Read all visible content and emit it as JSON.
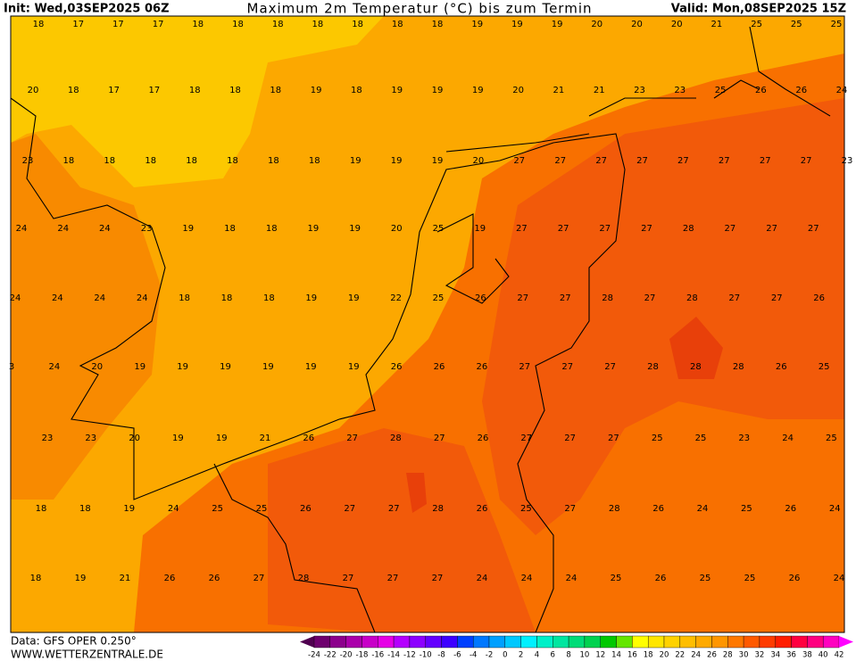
{
  "header": {
    "init": "Init: Wed,03SEP2025 06Z",
    "title": "Maximum 2m Temperatur (°C) bis zum Termin",
    "valid": "Valid: Mon,08SEP2025 15Z"
  },
  "footer": {
    "data": "Data: GFS OPER 0.250°",
    "site": "WWW.WETTERZENTRALE.DE"
  },
  "map": {
    "rows": [
      [
        18,
        17,
        17,
        17,
        18,
        18,
        18,
        18,
        18,
        18,
        18,
        19,
        19,
        19,
        20,
        20,
        20,
        21,
        25,
        25,
        25
      ],
      [
        20,
        18,
        17,
        17,
        18,
        18,
        18,
        19,
        18,
        19,
        19,
        19,
        20,
        21,
        21,
        23,
        23,
        25,
        26,
        26,
        24
      ],
      [
        23,
        18,
        18,
        18,
        18,
        18,
        18,
        18,
        19,
        19,
        19,
        20,
        27,
        27,
        27,
        27,
        27,
        27,
        27,
        27,
        23
      ],
      [
        24,
        24,
        24,
        23,
        19,
        18,
        18,
        19,
        19,
        20,
        25,
        19,
        27,
        27,
        27,
        27,
        28,
        27,
        27,
        27
      ],
      [
        24,
        24,
        24,
        24,
        18,
        18,
        18,
        19,
        19,
        22,
        25,
        26,
        27,
        27,
        28,
        27,
        28,
        27,
        27,
        26
      ],
      [
        3,
        24,
        20,
        19,
        19,
        19,
        19,
        19,
        19,
        26,
        26,
        26,
        27,
        27,
        27,
        28,
        28,
        28,
        26,
        25
      ],
      [
        23,
        23,
        20,
        19,
        19,
        21,
        26,
        27,
        28,
        27,
        26,
        27,
        27,
        27,
        25,
        25,
        23,
        24,
        25
      ],
      [
        18,
        18,
        19,
        24,
        25,
        25,
        26,
        27,
        27,
        28,
        26,
        25,
        27,
        28,
        26,
        24,
        25,
        26,
        24
      ],
      [
        18,
        19,
        21,
        26,
        26,
        27,
        28,
        27,
        27,
        27,
        24,
        24,
        24,
        25,
        26,
        25,
        25,
        26,
        24
      ]
    ]
  },
  "colorbar": {
    "ticks": [
      -24,
      -22,
      -20,
      -18,
      -16,
      -14,
      -12,
      -10,
      -8,
      -6,
      -4,
      -2,
      0,
      2,
      4,
      6,
      8,
      10,
      12,
      14,
      16,
      18,
      20,
      22,
      24,
      26,
      28,
      30,
      32,
      34,
      36,
      38,
      40,
      42
    ],
    "colors": [
      "#500050",
      "#6e006e",
      "#8c008c",
      "#aa00aa",
      "#c800c8",
      "#e600e6",
      "#b400ff",
      "#8c00ff",
      "#6400ff",
      "#3c00ff",
      "#0040ff",
      "#0078ff",
      "#00a0ff",
      "#00c8ff",
      "#00f0ff",
      "#00f0c8",
      "#00e6a0",
      "#00dc78",
      "#00d250",
      "#00c800",
      "#64e600",
      "#ffff00",
      "#ffe600",
      "#ffd200",
      "#ffbe00",
      "#ffaa00",
      "#ff9600",
      "#ff7800",
      "#ff5a00",
      "#ff3c00",
      "#ff1e00",
      "#ff0040",
      "#ff0080",
      "#ff00c0",
      "#ff00ff"
    ]
  }
}
